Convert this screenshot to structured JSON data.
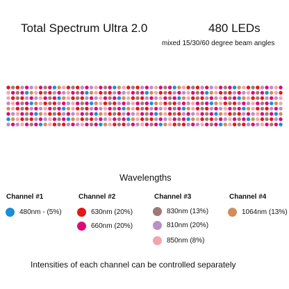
{
  "header": {
    "title": "Total Spectrum Ultra 2.0",
    "led_count": "480 LEDs",
    "beam_angles": "mixed 15/30/60 degree beam angles"
  },
  "led_array": {
    "palette": {
      "blue": "#1a8fd8",
      "red": "#e51616",
      "magenta": "#dd0b78",
      "mauve": "#a07878",
      "lilac": "#b98fc6",
      "pink": "#f2a6ac",
      "copper": "#cf8e5a"
    }
  },
  "wavelengths": {
    "heading": "Wavelengths",
    "channels": [
      {
        "title": "Channel #1",
        "items": [
          {
            "label": "480nm - (5%)",
            "color": "#1a8fd8"
          }
        ]
      },
      {
        "title": "Channel #2",
        "items": [
          {
            "label": "630nm (20%)",
            "color": "#e51616"
          },
          {
            "label": "660nm (20%)",
            "color": "#dd0b78"
          }
        ]
      },
      {
        "title": "Channel #3",
        "items": [
          {
            "label": "830nm (13%)",
            "color": "#a07878"
          },
          {
            "label": "810nm (20%)",
            "color": "#b98fc6"
          },
          {
            "label": "850nm (8%)",
            "color": "#f2a6ac"
          }
        ]
      },
      {
        "title": "Channel #4",
        "items": [
          {
            "label": "1064nm (13%)",
            "color": "#cf8e5a"
          }
        ]
      }
    ]
  },
  "footer": "Intensities of each channel can be controlled separately"
}
